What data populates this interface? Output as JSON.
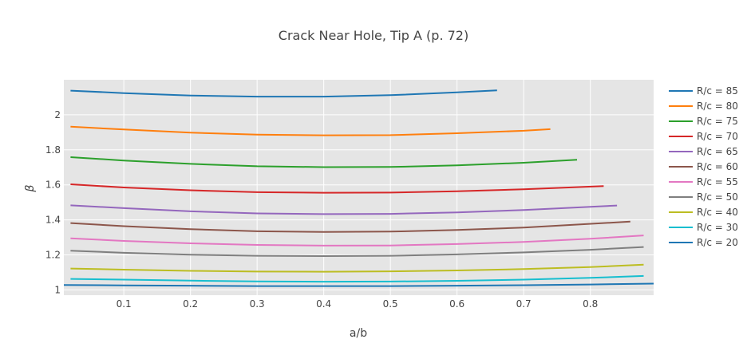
{
  "chart_data": {
    "type": "line",
    "title": "Crack Near Hole, Tip A (p. 72)",
    "xlabel": "a/b",
    "ylabel": "β",
    "xlim": [
      0.01,
      0.895
    ],
    "ylim": [
      0.97,
      2.2
    ],
    "xticks": [
      0.1,
      0.2,
      0.3,
      0.4,
      0.5,
      0.6,
      0.7,
      0.8
    ],
    "yticks": [
      1,
      1.2,
      1.4,
      1.6,
      1.8,
      2
    ],
    "grid": true,
    "legend_position": "right",
    "series": [
      {
        "name": "R/c = 85",
        "color": "#1f77b4",
        "x": [
          0.02,
          0.1,
          0.2,
          0.3,
          0.4,
          0.5,
          0.6,
          0.66
        ],
        "y": [
          2.138,
          2.124,
          2.11,
          2.104,
          2.104,
          2.112,
          2.128,
          2.14
        ]
      },
      {
        "name": "R/c = 80",
        "color": "#ff7f0e",
        "x": [
          0.02,
          0.1,
          0.2,
          0.3,
          0.4,
          0.5,
          0.6,
          0.7,
          0.74
        ],
        "y": [
          1.932,
          1.916,
          1.898,
          1.887,
          1.883,
          1.884,
          1.895,
          1.909,
          1.918
        ]
      },
      {
        "name": "R/c = 75",
        "color": "#2ca02c",
        "x": [
          0.02,
          0.1,
          0.2,
          0.3,
          0.4,
          0.5,
          0.6,
          0.7,
          0.78
        ],
        "y": [
          1.758,
          1.739,
          1.72,
          1.706,
          1.701,
          1.702,
          1.711,
          1.726,
          1.743
        ]
      },
      {
        "name": "R/c = 70",
        "color": "#d62728",
        "x": [
          0.02,
          0.1,
          0.2,
          0.3,
          0.4,
          0.5,
          0.6,
          0.7,
          0.82
        ],
        "y": [
          1.603,
          1.585,
          1.569,
          1.558,
          1.555,
          1.556,
          1.563,
          1.575,
          1.593
        ]
      },
      {
        "name": "R/c = 65",
        "color": "#9467bd",
        "x": [
          0.02,
          0.1,
          0.2,
          0.3,
          0.4,
          0.5,
          0.6,
          0.7,
          0.84
        ],
        "y": [
          1.483,
          1.467,
          1.449,
          1.437,
          1.433,
          1.434,
          1.443,
          1.456,
          1.482
        ]
      },
      {
        "name": "R/c = 60",
        "color": "#8c564b",
        "x": [
          0.02,
          0.1,
          0.2,
          0.3,
          0.4,
          0.5,
          0.6,
          0.7,
          0.86
        ],
        "y": [
          1.382,
          1.364,
          1.347,
          1.335,
          1.331,
          1.333,
          1.342,
          1.356,
          1.39
        ]
      },
      {
        "name": "R/c = 55",
        "color": "#e377c2",
        "x": [
          0.02,
          0.1,
          0.2,
          0.3,
          0.4,
          0.5,
          0.6,
          0.7,
          0.8,
          0.88
        ],
        "y": [
          1.295,
          1.28,
          1.266,
          1.257,
          1.253,
          1.254,
          1.262,
          1.274,
          1.292,
          1.311
        ]
      },
      {
        "name": "R/c = 50",
        "color": "#7f7f7f",
        "x": [
          0.02,
          0.1,
          0.2,
          0.3,
          0.4,
          0.5,
          0.6,
          0.7,
          0.8,
          0.88
        ],
        "y": [
          1.224,
          1.212,
          1.201,
          1.195,
          1.193,
          1.195,
          1.203,
          1.214,
          1.229,
          1.245
        ]
      },
      {
        "name": "R/c = 40",
        "color": "#bcbd22",
        "x": [
          0.02,
          0.1,
          0.2,
          0.3,
          0.4,
          0.5,
          0.6,
          0.7,
          0.8,
          0.88
        ],
        "y": [
          1.122,
          1.116,
          1.109,
          1.105,
          1.104,
          1.106,
          1.111,
          1.119,
          1.131,
          1.144
        ]
      },
      {
        "name": "R/c = 30",
        "color": "#17becf",
        "x": [
          0.02,
          0.1,
          0.2,
          0.3,
          0.4,
          0.5,
          0.6,
          0.7,
          0.8,
          0.88
        ],
        "y": [
          1.063,
          1.059,
          1.053,
          1.049,
          1.047,
          1.048,
          1.052,
          1.059,
          1.069,
          1.08
        ]
      },
      {
        "name": "R/c = 20",
        "color": "#1f77b4",
        "x": [
          0.01,
          0.1,
          0.2,
          0.3,
          0.4,
          0.5,
          0.6,
          0.7,
          0.8,
          0.895
        ],
        "y": [
          1.028,
          1.026,
          1.024,
          1.022,
          1.022,
          1.022,
          1.024,
          1.027,
          1.031,
          1.036
        ]
      }
    ]
  }
}
